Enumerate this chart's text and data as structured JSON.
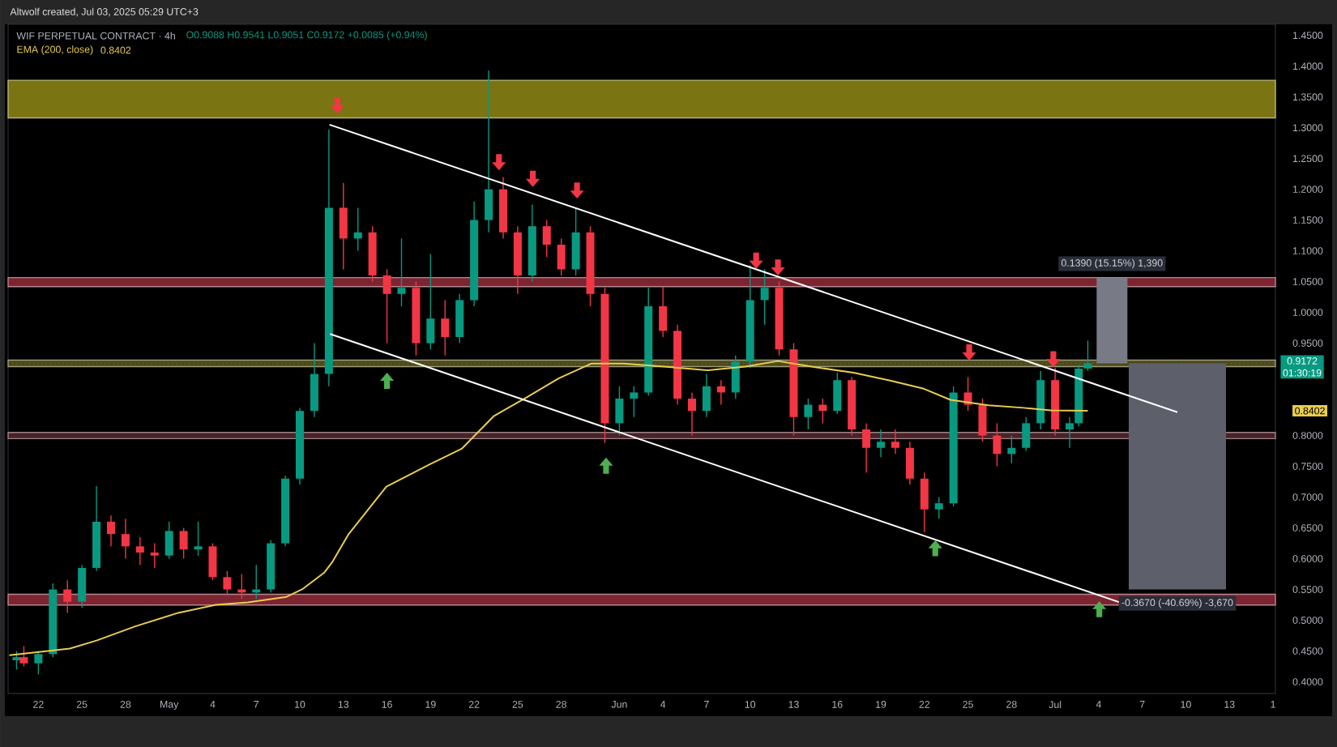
{
  "chart_data": {
    "type": "candlestick",
    "title": "WIF PERPETUAL CONTRACT · 4h",
    "subtitle": "O0.9088 H0.9541 L0.9051 C0.9172 +0.0085 (+0.94%)",
    "annotations": [
      "Altwolf created, Jul 03, 2025 05:29 UTC+3",
      {
        "text": "0.1390 (15.15%) 1,390",
        "x": "2025-07-04T22:00",
        "y": 1.0562
      },
      {
        "text": "-0.3670 (-40.69%) -3,670",
        "x": "2025-07-09T10:00",
        "y": 0.5502
      },
      "01:30:19",
      "0.8402"
    ],
    "x": [
      "2025-04-20T12:00",
      "2025-04-21",
      "2025-04-22",
      "2025-04-23",
      "2025-04-24",
      "2025-04-25",
      "2025-04-26",
      "2025-04-27",
      "2025-04-28",
      "2025-04-29",
      "2025-04-30",
      "2025-05-01",
      "2025-05-02",
      "2025-05-03",
      "2025-05-04",
      "2025-05-05",
      "2025-05-06",
      "2025-05-07",
      "2025-05-08",
      "2025-05-09",
      "2025-05-10",
      "2025-05-11",
      "2025-05-12",
      "2025-05-13",
      "2025-05-14",
      "2025-05-15",
      "2025-05-16",
      "2025-05-17",
      "2025-05-18",
      "2025-05-19",
      "2025-05-20",
      "2025-05-21",
      "2025-05-22",
      "2025-05-23",
      "2025-05-24",
      "2025-05-25",
      "2025-05-26",
      "2025-05-27",
      "2025-05-28",
      "2025-05-29",
      "2025-05-30",
      "2025-05-31",
      "2025-06-01",
      "2025-06-02",
      "2025-06-03",
      "2025-06-04",
      "2025-06-05",
      "2025-06-06",
      "2025-06-07",
      "2025-06-08",
      "2025-06-09",
      "2025-06-10",
      "2025-06-11",
      "2025-06-12",
      "2025-06-13",
      "2025-06-14",
      "2025-06-15",
      "2025-06-16",
      "2025-06-17",
      "2025-06-18",
      "2025-06-19",
      "2025-06-20",
      "2025-06-21",
      "2025-06-22",
      "2025-06-23",
      "2025-06-24",
      "2025-06-25",
      "2025-06-26",
      "2025-06-27",
      "2025-06-28",
      "2025-06-29",
      "2025-06-30",
      "2025-07-01",
      "2025-07-02",
      "2025-07-02T15:00",
      "2025-07-03T06:00"
    ],
    "ohlc": [
      [
        0.435,
        0.45,
        0.42,
        0.44
      ],
      [
        0.44,
        0.458,
        0.425,
        0.43
      ],
      [
        0.43,
        0.45,
        0.412,
        0.445
      ],
      [
        0.445,
        0.56,
        0.44,
        0.55
      ],
      [
        0.55,
        0.565,
        0.512,
        0.53
      ],
      [
        0.53,
        0.59,
        0.52,
        0.585
      ],
      [
        0.585,
        0.718,
        0.58,
        0.66
      ],
      [
        0.66,
        0.67,
        0.62,
        0.64
      ],
      [
        0.64,
        0.665,
        0.6,
        0.62
      ],
      [
        0.62,
        0.635,
        0.59,
        0.61
      ],
      [
        0.61,
        0.625,
        0.585,
        0.605
      ],
      [
        0.605,
        0.66,
        0.6,
        0.645
      ],
      [
        0.645,
        0.65,
        0.6,
        0.615
      ],
      [
        0.615,
        0.66,
        0.605,
        0.62
      ],
      [
        0.62,
        0.625,
        0.565,
        0.57
      ],
      [
        0.57,
        0.58,
        0.54,
        0.55
      ],
      [
        0.55,
        0.575,
        0.535,
        0.545
      ],
      [
        0.545,
        0.59,
        0.535,
        0.55
      ],
      [
        0.55,
        0.63,
        0.545,
        0.625
      ],
      [
        0.625,
        0.735,
        0.62,
        0.73
      ],
      [
        0.73,
        0.845,
        0.72,
        0.84
      ],
      [
        0.84,
        0.95,
        0.83,
        0.9
      ],
      [
        0.9,
        1.297,
        0.88,
        1.17
      ],
      [
        1.17,
        1.21,
        1.07,
        1.12
      ],
      [
        1.12,
        1.17,
        1.1,
        1.13
      ],
      [
        1.13,
        1.14,
        1.05,
        1.06
      ],
      [
        1.06,
        1.07,
        0.95,
        1.03
      ],
      [
        1.03,
        1.12,
        1.01,
        1.04
      ],
      [
        1.04,
        1.05,
        0.93,
        0.95
      ],
      [
        0.95,
        1.095,
        0.94,
        0.99
      ],
      [
        0.99,
        1.02,
        0.93,
        0.96
      ],
      [
        0.96,
        1.03,
        0.95,
        1.02
      ],
      [
        1.02,
        1.18,
        1.01,
        1.15
      ],
      [
        1.15,
        1.393,
        1.13,
        1.2
      ],
      [
        1.2,
        1.22,
        1.12,
        1.13
      ],
      [
        1.13,
        1.14,
        1.03,
        1.06
      ],
      [
        1.06,
        1.175,
        1.05,
        1.14
      ],
      [
        1.14,
        1.15,
        1.09,
        1.11
      ],
      [
        1.11,
        1.12,
        1.06,
        1.07
      ],
      [
        1.07,
        1.17,
        1.06,
        1.13
      ],
      [
        1.13,
        1.14,
        1.01,
        1.03
      ],
      [
        1.03,
        1.04,
        0.788,
        0.82
      ],
      [
        0.82,
        0.88,
        0.8,
        0.86
      ],
      [
        0.86,
        0.88,
        0.83,
        0.87
      ],
      [
        0.87,
        1.04,
        0.865,
        1.01
      ],
      [
        1.01,
        1.042,
        0.96,
        0.97
      ],
      [
        0.97,
        0.98,
        0.85,
        0.86
      ],
      [
        0.86,
        0.87,
        0.8,
        0.84
      ],
      [
        0.84,
        0.9,
        0.83,
        0.88
      ],
      [
        0.88,
        0.89,
        0.85,
        0.87
      ],
      [
        0.87,
        0.93,
        0.86,
        0.92
      ],
      [
        0.92,
        1.077,
        0.91,
        1.02
      ],
      [
        1.02,
        1.07,
        0.98,
        1.04
      ],
      [
        1.04,
        1.05,
        0.93,
        0.94
      ],
      [
        0.94,
        0.95,
        0.8,
        0.83
      ],
      [
        0.83,
        0.86,
        0.81,
        0.85
      ],
      [
        0.85,
        0.86,
        0.82,
        0.84
      ],
      [
        0.84,
        0.902,
        0.835,
        0.89
      ],
      [
        0.89,
        0.895,
        0.8,
        0.81
      ],
      [
        0.81,
        0.82,
        0.74,
        0.78
      ],
      [
        0.78,
        0.81,
        0.765,
        0.79
      ],
      [
        0.79,
        0.81,
        0.77,
        0.78
      ],
      [
        0.78,
        0.79,
        0.72,
        0.73
      ],
      [
        0.73,
        0.74,
        0.643,
        0.68
      ],
      [
        0.68,
        0.7,
        0.665,
        0.69
      ],
      [
        0.69,
        0.88,
        0.685,
        0.87
      ],
      [
        0.87,
        0.895,
        0.84,
        0.85
      ],
      [
        0.85,
        0.86,
        0.79,
        0.8
      ],
      [
        0.8,
        0.82,
        0.75,
        0.77
      ],
      [
        0.77,
        0.8,
        0.755,
        0.78
      ],
      [
        0.78,
        0.83,
        0.775,
        0.82
      ],
      [
        0.82,
        0.905,
        0.81,
        0.89
      ],
      [
        0.89,
        0.91,
        0.8,
        0.81
      ],
      [
        0.81,
        0.83,
        0.78,
        0.82
      ],
      [
        0.82,
        0.915,
        0.815,
        0.9088
      ],
      [
        0.9088,
        0.9541,
        0.9051,
        0.9172
      ]
    ],
    "series": [
      {
        "name": "EMA (200, close)",
        "type": "line",
        "color": "#e8cd4f",
        "x": [
          "2025-04-20T00:00",
          "2025-04-24T04:00",
          "2025-04-26T00:00",
          "2025-04-28T16:00",
          "2025-05-01T15:00",
          "2025-05-04T05:00",
          "2025-05-06T10:00",
          "2025-05-09T02:00",
          "2025-05-10T05:00",
          "2025-05-11T16:00",
          "2025-05-12T06:00",
          "2025-05-13T08:00",
          "2025-05-15T23:00",
          "2025-05-18T22:00",
          "2025-05-21T04:00",
          "2025-05-23T09:00",
          "2025-05-25T15:00",
          "2025-05-27T20:00",
          "2025-05-30T02:00",
          "2025-06-01T07:00",
          "2025-06-04T02:00",
          "2025-06-07T02:00",
          "2025-06-09T16:00",
          "2025-06-11T22:00",
          "2025-06-14T12:00",
          "2025-06-17T03:00",
          "2025-06-19T17:00",
          "2025-06-21T23:00",
          "2025-06-23T19:00",
          "2025-06-26T10:00",
          "2025-06-28T20:00",
          "2025-06-30T17:00",
          "2025-07-03T06:00"
        ],
        "values": [
          0.443,
          0.454,
          0.467,
          0.49,
          0.512,
          0.525,
          0.529,
          0.538,
          0.551,
          0.577,
          0.595,
          0.639,
          0.717,
          0.753,
          0.779,
          0.832,
          0.862,
          0.893,
          0.917,
          0.917,
          0.912,
          0.906,
          0.912,
          0.921,
          0.911,
          0.902,
          0.889,
          0.876,
          0.858,
          0.849,
          0.845,
          0.841,
          0.8402
        ]
      },
      {
        "type": "line",
        "color": "#ffffff",
        "x": [
          "2025-05-12T01:00",
          "2025-07-09T10:00"
        ],
        "values": [
          1.305,
          0.838
        ]
      },
      {
        "type": "line",
        "color": "#ffffff",
        "x": [
          "2025-05-12T02:00",
          "2025-07-06T14:00"
        ],
        "values": [
          0.965,
          0.52
        ]
      },
      {
        "type": "scatter",
        "marker": "triangle",
        "color": "#f23645",
        "x": [
          "2025-05-12T14:00",
          "2025-05-23T17:00",
          "2025-05-26T01:00",
          "2025-05-29T02:00",
          "2025-06-10T10:00",
          "2025-06-11T22:00",
          "2025-06-25T02:00",
          "2025-06-30T21:00"
        ],
        "values": [
          1.336,
          1.244,
          1.217,
          1.198,
          1.084,
          1.073,
          0.935,
          0.924
        ]
      },
      {
        "type": "scatter",
        "marker": "triangle",
        "color": "#4caf50",
        "x": [
          "2025-05-16T00:00",
          "2025-05-31T02:00",
          "2025-06-22T18:00",
          "2025-07-04T01:00"
        ],
        "values": [
          0.889,
          0.751,
          0.617,
          0.518
        ]
      },
      {
        "type": "bar",
        "color": "#787b86",
        "x": [
          "2025-07-04T22:00"
        ],
        "base": [
          0.9172
        ],
        "values": [
          0.139
        ]
      },
      {
        "type": "bar",
        "color": "#5d606b",
        "x": [
          "2025-07-09T10:00"
        ],
        "base": [
          0.9172
        ],
        "values": [
          -0.367
        ]
      }
    ],
    "bands": [
      {
        "axis": "y",
        "from": 1.316,
        "to": 1.377,
        "color": "#7b7413"
      },
      {
        "axis": "y",
        "from": 1.042,
        "to": 1.0566,
        "color": "#7d2431"
      },
      {
        "axis": "y",
        "from": 0.912,
        "to": 0.9225,
        "color": "#4d4a18"
      },
      {
        "axis": "y",
        "from": 0.795,
        "to": 0.805,
        "color": "#4a2228"
      },
      {
        "axis": "y",
        "from": 0.5247,
        "to": 0.5421,
        "color": "#7d2431"
      }
    ],
    "ref_lines": [
      {
        "axis": "y",
        "value": 0.9172,
        "label": "0.9172",
        "color": "#089981",
        "line_style": "dotted"
      }
    ],
    "xlim": [
      "2025-04-19T22:00",
      "2025-07-16T04:00"
    ],
    "xticks": [
      {
        "value": "2025-04-22",
        "label": "22"
      },
      {
        "value": "2025-04-25",
        "label": "25"
      },
      {
        "value": "2025-04-28",
        "label": "28"
      },
      {
        "value": "2025-05-01",
        "label": "May"
      },
      {
        "value": "2025-05-04",
        "label": "4"
      },
      {
        "value": "2025-05-07",
        "label": "7"
      },
      {
        "value": "2025-05-10",
        "label": "10"
      },
      {
        "value": "2025-05-13",
        "label": "13"
      },
      {
        "value": "2025-05-16",
        "label": "16"
      },
      {
        "value": "2025-05-19",
        "label": "19"
      },
      {
        "value": "2025-05-22",
        "label": "22"
      },
      {
        "value": "2025-05-25",
        "label": "25"
      },
      {
        "value": "2025-05-28",
        "label": "28"
      },
      {
        "value": "2025-06-01",
        "label": "Jun"
      },
      {
        "value": "2025-06-04",
        "label": "4"
      },
      {
        "value": "2025-06-07",
        "label": "7"
      },
      {
        "value": "2025-06-10",
        "label": "10"
      },
      {
        "value": "2025-06-13",
        "label": "13"
      },
      {
        "value": "2025-06-16",
        "label": "16"
      },
      {
        "value": "2025-06-19",
        "label": "19"
      },
      {
        "value": "2025-06-22",
        "label": "22"
      },
      {
        "value": "2025-06-25",
        "label": "25"
      },
      {
        "value": "2025-06-28",
        "label": "28"
      },
      {
        "value": "2025-07-01",
        "label": "Jul"
      },
      {
        "value": "2025-07-04",
        "label": "4"
      },
      {
        "value": "2025-07-07",
        "label": "7"
      },
      {
        "value": "2025-07-10",
        "label": "10"
      },
      {
        "value": "2025-07-13",
        "label": "13"
      },
      {
        "value": "2025-07-16",
        "label": "1"
      }
    ],
    "ylim": [
      0.381,
      1.468
    ],
    "yticks": [
      {
        "value": 0.4,
        "label": "0.4000"
      },
      {
        "value": 0.45,
        "label": "0.4500"
      },
      {
        "value": 0.5,
        "label": "0.5000"
      },
      {
        "value": 0.55,
        "label": "0.5500"
      },
      {
        "value": 0.6,
        "label": "0.6000"
      },
      {
        "value": 0.65,
        "label": "0.6500"
      },
      {
        "value": 0.7,
        "label": "0.7000"
      },
      {
        "value": 0.75,
        "label": "0.7500"
      },
      {
        "value": 0.8,
        "label": "0.8000"
      },
      {
        "value": 0.8402,
        "label": "0.8402"
      },
      {
        "value": 0.95,
        "label": "0.9500"
      },
      {
        "value": 1.0,
        "label": "1.0000"
      },
      {
        "value": 1.05,
        "label": "1.0500"
      },
      {
        "value": 1.1,
        "label": "1.1000"
      },
      {
        "value": 1.15,
        "label": "1.1500"
      },
      {
        "value": 1.2,
        "label": "1.2000"
      },
      {
        "value": 1.25,
        "label": "1.2500"
      },
      {
        "value": 1.3,
        "label": "1.3000"
      },
      {
        "value": 1.35,
        "label": "1.3500"
      },
      {
        "value": 1.4,
        "label": "1.4000"
      },
      {
        "value": 1.45,
        "label": "1.4500"
      }
    ],
    "legend": "top left"
  }
}
